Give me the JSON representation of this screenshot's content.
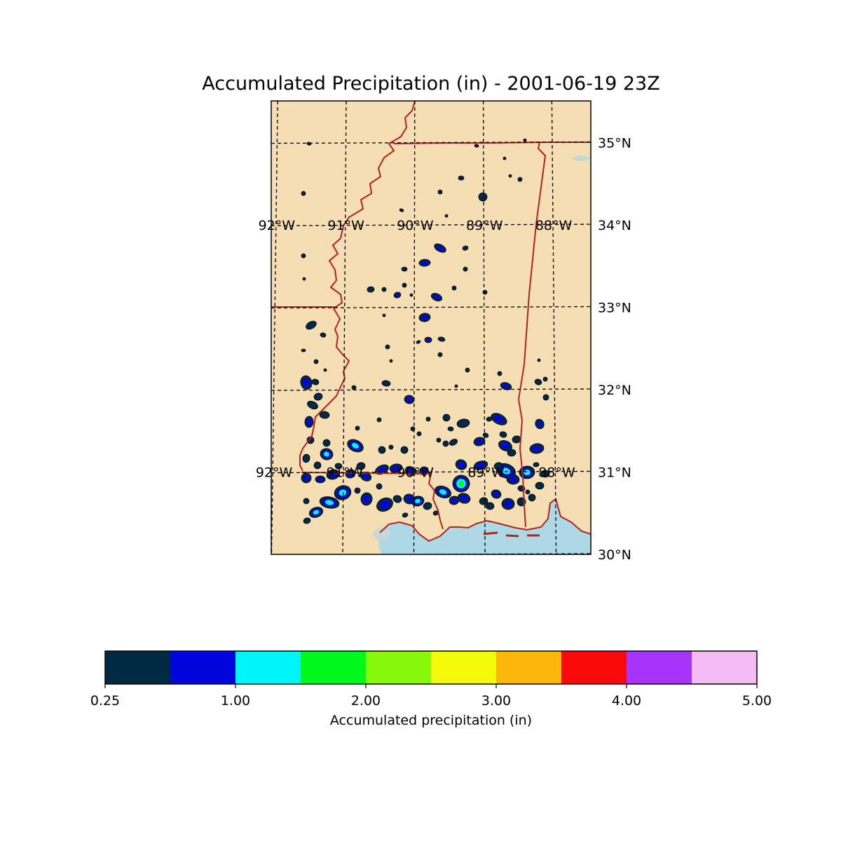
{
  "title": "Accumulated Precipitation (in) - 2001-06-19 23Z",
  "map": {
    "lat_range": [
      30.0,
      35.5
    ],
    "lon_range": [
      -92.1,
      -87.6
    ],
    "latitudes": [
      {
        "value": 30,
        "label": "30°N"
      },
      {
        "value": 31,
        "label": "31°N"
      },
      {
        "value": 32,
        "label": "32°N"
      },
      {
        "value": 33,
        "label": "33°N"
      },
      {
        "value": 34,
        "label": "34°N"
      },
      {
        "value": 35,
        "label": "35°N"
      }
    ],
    "longitude_labels_row_34": [
      {
        "value": -92,
        "label": "92°W"
      },
      {
        "value": -91,
        "label": "91°W"
      },
      {
        "value": -90,
        "label": "90°W"
      },
      {
        "value": -89,
        "label": "89°W"
      },
      {
        "value": -88,
        "label": "88°W"
      }
    ],
    "longitude_labels_row_31": [
      {
        "value": -92,
        "label": "92°W"
      },
      {
        "value": -91,
        "label": "91°W"
      },
      {
        "value": -90,
        "label": "90°W"
      },
      {
        "value": -89,
        "label": "89°W"
      },
      {
        "value": -88,
        "label": "88°W"
      }
    ],
    "colors": {
      "land": "#f5deb3",
      "water": "#add8e6",
      "border": "#b22222",
      "grid": "#000000"
    }
  },
  "colorbar": {
    "label": "Accumulated precipitation (in)",
    "colors": [
      "#002a44",
      "#0005dd",
      "#00f5fa",
      "#00f91a",
      "#86f90a",
      "#f5fa0a",
      "#fbb70a",
      "#fa0a0a",
      "#a834fb",
      "#f4bbf4"
    ],
    "ticks": [
      {
        "value": 0.25,
        "label": "0.25"
      },
      {
        "value": 1.0,
        "label": "1.00"
      },
      {
        "value": 2.0,
        "label": "2.00"
      },
      {
        "value": 3.0,
        "label": "3.00"
      },
      {
        "value": 4.0,
        "label": "4.00"
      },
      {
        "value": 5.0,
        "label": "5.00"
      }
    ]
  }
}
